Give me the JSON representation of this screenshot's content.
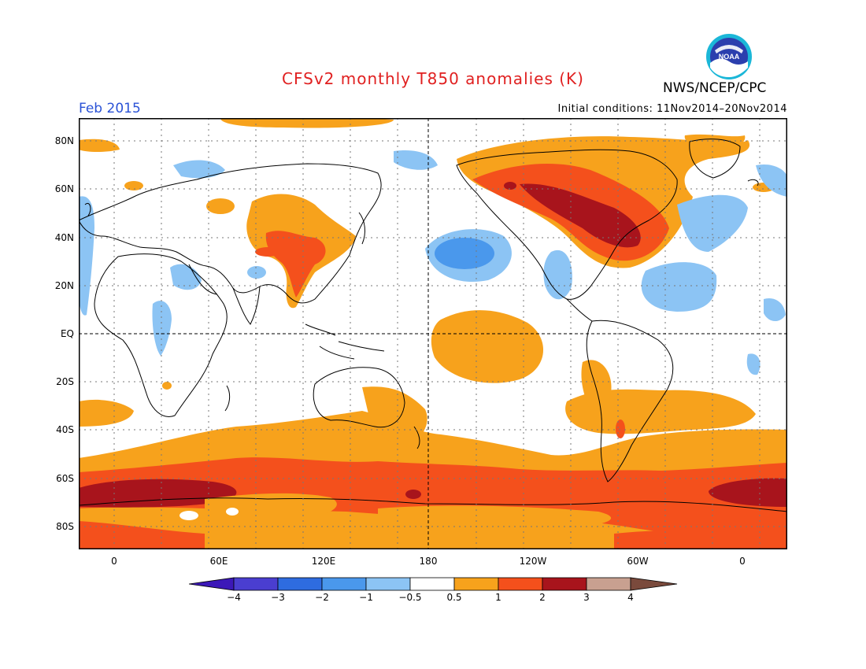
{
  "header": {
    "title": "CFSv2 monthly T850 anomalies (K)",
    "agency": "NWS/NCEP/CPC",
    "period": "Feb 2015",
    "initial_conditions": "Initial conditions: 11Nov2014–20Nov2014",
    "logo_text": "NOAA"
  },
  "map": {
    "lat_labels": [
      "80N",
      "60N",
      "40N",
      "20N",
      "EQ",
      "20S",
      "40S",
      "60S",
      "80S"
    ],
    "lon_labels": [
      "0",
      "60E",
      "120E",
      "180",
      "120W",
      "60W",
      "0"
    ]
  },
  "colorbar": {
    "labels": [
      "−4",
      "−3",
      "−2",
      "−1",
      "−0.5",
      "0.5",
      "1",
      "2",
      "3",
      "4"
    ],
    "colors": [
      "#3c18b8",
      "#4a3ed0",
      "#2e6ce0",
      "#4a98ec",
      "#8cc4f4",
      "#ffffff",
      "#f7a21c",
      "#f4501c",
      "#a8141c",
      "#c8a090",
      "#7a4a3c"
    ]
  },
  "colors": {
    "title": "#e02020",
    "period": "#2a52d6"
  }
}
